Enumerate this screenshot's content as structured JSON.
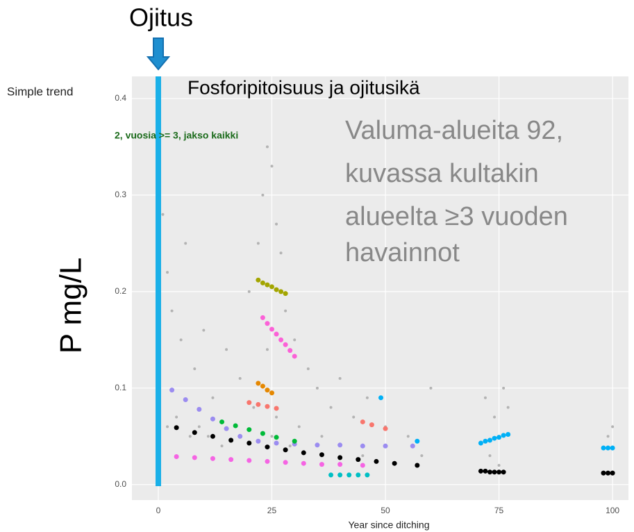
{
  "chart_data": {
    "type": "scatter",
    "title": "Fosforipitoisuus ja ojitusikä",
    "marker_label": "Ojitus",
    "side_note": "Simple trend",
    "subtitle_fragment": "2, vuosia >= 3, jakso kaikki",
    "annotation": [
      "Valuma-alueita 92,",
      "kuvassa kultakin",
      "alueelta ≥3 vuoden",
      "havainnot"
    ],
    "y_label": "P mg/L",
    "x_label": "Year since ditching",
    "xlim": [
      -5.8,
      103.5
    ],
    "ylim": [
      -0.016,
      0.423
    ],
    "xticks": [
      0,
      25,
      50,
      75,
      100
    ],
    "yticks": [
      {
        "value": 0,
        "label": "0.0"
      },
      0.1,
      0.2,
      0.3,
      0.4
    ],
    "grid": true,
    "background": "#ebebeb",
    "marker_color": "#1ab0e8",
    "series": [
      {
        "color": "#b3b3b3",
        "x": [
          1,
          2,
          3,
          5,
          6,
          8,
          10,
          12,
          15,
          18,
          20,
          22,
          23,
          24,
          25,
          26,
          27,
          28,
          30,
          33,
          35,
          38,
          40,
          43,
          46,
          50,
          55,
          60,
          72,
          74,
          76,
          77,
          99,
          100,
          2,
          4,
          7,
          9,
          11,
          14,
          17,
          21,
          24,
          25,
          26,
          29,
          31,
          36,
          45,
          58,
          73,
          75
        ],
        "values": [
          0.28,
          0.22,
          0.18,
          0.15,
          0.25,
          0.12,
          0.16,
          0.09,
          0.14,
          0.11,
          0.2,
          0.25,
          0.3,
          0.35,
          0.33,
          0.27,
          0.24,
          0.18,
          0.15,
          0.12,
          0.1,
          0.08,
          0.11,
          0.07,
          0.09,
          0.06,
          0.05,
          0.1,
          0.09,
          0.07,
          0.1,
          0.08,
          0.05,
          0.06,
          0.06,
          0.07,
          0.05,
          0.06,
          0.05,
          0.04,
          0.06,
          0.08,
          0.14,
          0.05,
          0.07,
          0.04,
          0.06,
          0.05,
          0.03,
          0.03,
          0.03,
          0.02
        ]
      },
      {
        "color": "#f564e3",
        "x": [
          0,
          4,
          8,
          12,
          16,
          20,
          24,
          28,
          32,
          36,
          40,
          45
        ],
        "values": [
          0.03,
          0.029,
          0.028,
          0.027,
          0.026,
          0.025,
          0.024,
          0.023,
          0.022,
          0.021,
          0.021,
          0.02
        ]
      },
      {
        "color": "#9b8cf0",
        "x": [
          0,
          3,
          6,
          9,
          12,
          15,
          18,
          22,
          26,
          30,
          35,
          40,
          45,
          50,
          56
        ],
        "values": [
          0.108,
          0.098,
          0.088,
          0.078,
          0.068,
          0.058,
          0.05,
          0.045,
          0.043,
          0.042,
          0.041,
          0.041,
          0.04,
          0.04,
          0.04
        ]
      },
      {
        "color": "#00ba38",
        "x": [
          14,
          17,
          20,
          23,
          26,
          30
        ],
        "values": [
          0.065,
          0.061,
          0.057,
          0.053,
          0.049,
          0.045
        ]
      },
      {
        "color": "#f8766d",
        "x": [
          20,
          22,
          24,
          26,
          45,
          47,
          50
        ],
        "values": [
          0.085,
          0.083,
          0.081,
          0.079,
          0.065,
          0.062,
          0.058
        ]
      },
      {
        "color": "#e58700",
        "x": [
          22,
          23,
          24,
          25
        ],
        "values": [
          0.105,
          0.102,
          0.098,
          0.095
        ]
      },
      {
        "color": "#a3a500",
        "x": [
          22,
          23,
          24,
          25,
          26,
          27,
          28
        ],
        "values": [
          0.212,
          0.209,
          0.207,
          0.205,
          0.202,
          0.2,
          0.198
        ]
      },
      {
        "color": "#fb61d7",
        "x": [
          23,
          24,
          25,
          26,
          27,
          28,
          29,
          30
        ],
        "values": [
          0.173,
          0.167,
          0.161,
          0.156,
          0.15,
          0.145,
          0.139,
          0.133
        ]
      },
      {
        "color": "#00bfc4",
        "x": [
          38,
          40,
          42,
          44,
          46
        ],
        "values": [
          0.01,
          0.01,
          0.01,
          0.01,
          0.01
        ]
      },
      {
        "color": "#00b0f6",
        "x": [
          49,
          57,
          71,
          72,
          73,
          74,
          75,
          76,
          77,
          98,
          99,
          100
        ],
        "values": [
          0.09,
          0.045,
          0.043,
          0.045,
          0.046,
          0.048,
          0.049,
          0.051,
          0.052,
          0.038,
          0.038,
          0.038
        ]
      },
      {
        "color": "#000000",
        "x": [
          0,
          4,
          8,
          12,
          16,
          20,
          24,
          28,
          32,
          36,
          40,
          44,
          48,
          52,
          57,
          71,
          72,
          73,
          74,
          75,
          76,
          98,
          99,
          100
        ],
        "values": [
          0.064,
          0.059,
          0.054,
          0.05,
          0.046,
          0.043,
          0.039,
          0.036,
          0.033,
          0.031,
          0.028,
          0.026,
          0.024,
          0.022,
          0.02,
          0.014,
          0.014,
          0.013,
          0.013,
          0.013,
          0.013,
          0.012,
          0.012,
          0.012
        ]
      }
    ]
  }
}
